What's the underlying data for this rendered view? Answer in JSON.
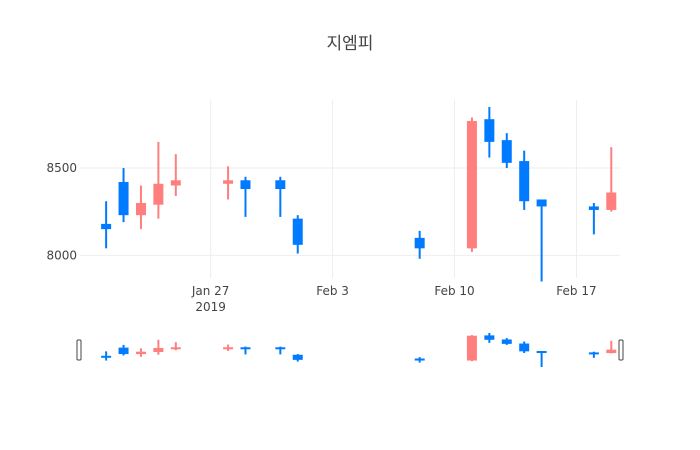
{
  "chart_data": {
    "type": "candlestick",
    "title": "지엠피",
    "increasing_color": "#FF7F7F",
    "decreasing_color": "#007BFF",
    "x_ticks": [
      {
        "date": "2019-01-27",
        "label": "Jan 27",
        "sublabel": "2019"
      },
      {
        "date": "2019-02-03",
        "label": "Feb 3",
        "sublabel": ""
      },
      {
        "date": "2019-02-10",
        "label": "Feb 10",
        "sublabel": ""
      },
      {
        "date": "2019-02-17",
        "label": "Feb 17",
        "sublabel": ""
      }
    ],
    "y_ticks": [
      8000,
      8500
    ],
    "xlim": [
      "2019-01-20",
      "2019-02-19"
    ],
    "ylim": [
      7870,
      8890
    ],
    "rangeslider": true,
    "candles": [
      {
        "date": "2019-01-21",
        "open": 8180,
        "high": 8310,
        "low": 8040,
        "close": 8150
      },
      {
        "date": "2019-01-22",
        "open": 8420,
        "high": 8500,
        "low": 8190,
        "close": 8230
      },
      {
        "date": "2019-01-23",
        "open": 8230,
        "high": 8400,
        "low": 8150,
        "close": 8300
      },
      {
        "date": "2019-01-24",
        "open": 8290,
        "high": 8650,
        "low": 8210,
        "close": 8410
      },
      {
        "date": "2019-01-25",
        "open": 8400,
        "high": 8580,
        "low": 8340,
        "close": 8430
      },
      {
        "date": "2019-01-28",
        "open": 8410,
        "high": 8510,
        "low": 8320,
        "close": 8430
      },
      {
        "date": "2019-01-29",
        "open": 8430,
        "high": 8450,
        "low": 8220,
        "close": 8380
      },
      {
        "date": "2019-01-31",
        "open": 8430,
        "high": 8450,
        "low": 8220,
        "close": 8380
      },
      {
        "date": "2019-02-01",
        "open": 8210,
        "high": 8230,
        "low": 8010,
        "close": 8060
      },
      {
        "date": "2019-02-08",
        "open": 8100,
        "high": 8140,
        "low": 7980,
        "close": 8040
      },
      {
        "date": "2019-02-11",
        "open": 8040,
        "high": 8790,
        "low": 8020,
        "close": 8770
      },
      {
        "date": "2019-02-12",
        "open": 8780,
        "high": 8850,
        "low": 8560,
        "close": 8650
      },
      {
        "date": "2019-02-13",
        "open": 8660,
        "high": 8700,
        "low": 8500,
        "close": 8530
      },
      {
        "date": "2019-02-14",
        "open": 8540,
        "high": 8600,
        "low": 8260,
        "close": 8310
      },
      {
        "date": "2019-02-15",
        "open": 8320,
        "high": 8320,
        "low": 7850,
        "close": 8280
      },
      {
        "date": "2019-02-18",
        "open": 8280,
        "high": 8300,
        "low": 8120,
        "close": 8260
      },
      {
        "date": "2019-02-19",
        "open": 8260,
        "high": 8620,
        "low": 8250,
        "close": 8360
      }
    ]
  }
}
